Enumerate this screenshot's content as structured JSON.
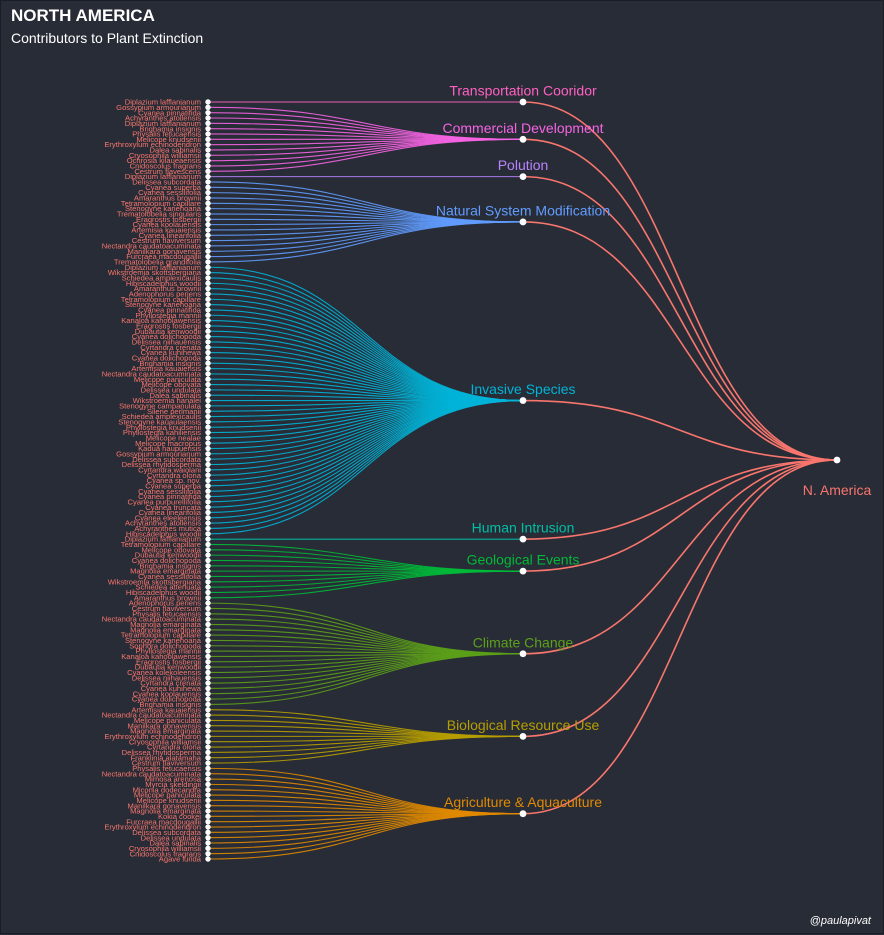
{
  "title": "NORTH AMERICA",
  "subtitle": "Contributors to Plant Extinction",
  "caption": "@paulapivat",
  "chart_data": {
    "type": "dendrogram",
    "root": {
      "name": "N. America",
      "color": "#f8766d"
    },
    "threats": [
      {
        "name": "Transportation Cooridor",
        "color": "#ff61c3"
      },
      {
        "name": "Commercial Development",
        "color": "#f564e3"
      },
      {
        "name": "Polution",
        "color": "#b983ff"
      },
      {
        "name": "Natural System Modification",
        "color": "#619cff"
      },
      {
        "name": "Invasive Species",
        "color": "#00b4d8"
      },
      {
        "name": "Human Intrusion",
        "color": "#00bfa5"
      },
      {
        "name": "Geological Events",
        "color": "#00ba38"
      },
      {
        "name": "Climate Change",
        "color": "#5ca01a"
      },
      {
        "name": "Biological Resource Use",
        "color": "#b79f00"
      },
      {
        "name": "Agriculture & Aquaculture",
        "color": "#e08a00"
      }
    ],
    "leaves": [
      [
        "Diplazium lafflanianum"
      ],
      [
        "Gossypium armourianum",
        "Cyanea pinnatifida",
        "Achyranthes atollensis",
        "Diplazium lafflanianum",
        "Brighamia insignis",
        "Physalis fetucaensis",
        "Melicope knudsenii",
        "Erythroxylum echinodendron",
        "Dalea sabinalis",
        "Cryosophila williamsii",
        "Ochrosia kilaueaensis",
        "Cnidoscolus fragrans",
        "Cestrum flavescens"
      ],
      [
        "Diplazium lafflanianum"
      ],
      [
        "Delissea subcordata",
        "Cyanea superba",
        "Cyanea sessilifolia",
        "Amaranthus brownii",
        "Tetramolopium capillare",
        "Stenogyne kanehoana",
        "Trematolobelia singularis",
        "Eragrostis fosbergii",
        "Cyanea koolauensis",
        "Artemisia kauaiensis",
        "Cyanea linearifolia",
        "Cestrum flaviversum",
        "Nectandra caudatoacuminata",
        "Manilkara gonavensis",
        "Furcraea macdougallii",
        "Trematolobelia grandifolia"
      ],
      [
        "Diplazium lafflanianum",
        "Wikstroemia skottsbergiana",
        "Schiedea amplexicaulis",
        "Hibiscadelphus woodii",
        "Amaranthus brownii",
        "Adenophorus periens",
        "Tetramolopium capillare",
        "Stenogyne kanehoana",
        "Cyanea pinnatifida",
        "Phyllostegia mannii",
        "Kanaloa kahoolawensis",
        "Eragrostis fosbergii",
        "Dubautia kenwoodii",
        "Cyanea dolichopoda",
        "Delissea niihauensis",
        "Cyrtandra crenata",
        "Cyanea kuhihewa",
        "Cyanea dolichopoda",
        "Brighamia insignis",
        "Artemisia kauaiensis",
        "Nectandra caudatoacuminata",
        "Melicope paniculata",
        "Melicope obovata",
        "Delissea undulata",
        "Dalea sabinalis",
        "Wikstroemia hanalei",
        "Stenogyne campanulata",
        "Silene perlmanii",
        "Schiedea amplexicaulis",
        "Stenogyne kauaulaensis",
        "Phyllostegia knudsenii",
        "Phyllostegia kahiliensis",
        "Melicope nealae",
        "Melicope macropus",
        "Kadua haupuensis",
        "Gossypium armourianum",
        "Delissea subcordata",
        "Delissea rhytidosperma",
        "Cyrtandra waiolani",
        "Cyrtandra olona",
        "Cyanea sp. nov.",
        "Cyanea superba",
        "Cyanea sessilifolia",
        "Cyanea pinnatifida",
        "Cyanea purpurellifolia",
        "Cyanea truncata",
        "Cyanea linearifolia",
        "Cyanea eleeleensis",
        "Achyranthes atollensis",
        "Achyranthes mutica",
        "Hibiscadelphus woodii"
      ],
      [
        "Diplazium lafflanianum"
      ],
      [
        "Tetramolopium capillare",
        "Melicope obovata",
        "Dubautia kenwoodii",
        "Cyanea dolichopoda",
        "Brighamia insignis",
        "Magnolia emarginata",
        "Cyanea sessilifolia",
        "Wikstroemia skottsbergiana",
        "Schiedea attenuata",
        "Hibiscadelphus woodii",
        "Amaranthus brownii"
      ],
      [
        "Adenophorus periens",
        "Cestrum flaviversum",
        "Physalis fetucaensis",
        "Nectandra caudatoacuminata",
        "Magnolia emarginata",
        "Magnolia emarginata",
        "Tetramolopium capillare",
        "Stenogyne kanehoana",
        "Sophora dolichopoda",
        "Phyllostegia mannii",
        "Kanaloa kahoolawensis",
        "Eragrostis fosbergii",
        "Dubautia kenwoodii",
        "Cyanea kolekoleensis",
        "Delissea niihauensis",
        "Cyrtandra crenata",
        "Cyanea kuhihewa",
        "Cyanea koolauensis",
        "Cyanea dolichopoda",
        "Brighamia insignis"
      ],
      [
        "Artemisia kauaiensis",
        "Nectandra caudatoacuminata",
        "Melicope paniculata",
        "Manilkara gonavensis",
        "Magnolia emarginata",
        "Erythroxylum echinodendron",
        "Cryosophila williamsii",
        "Cyrtandra olona",
        "Delissea rhytidosperma",
        "Franklinia alatamaha",
        "Cestrum flaviversum"
      ],
      [
        "Physalis fetucaensis",
        "Nectandra caudatoacuminata",
        "Mimosa arenosa",
        "Myrcia skeldingii",
        "Miconia dodecandra",
        "Melicope paniculata",
        "Melicope knudsenii",
        "Manilkara gonavensis",
        "Magnolia emarginata",
        "Kokia cookei",
        "Furcraea macdougallii",
        "Erythroxylum echinodendron",
        "Delissea subcordata",
        "Delissea undulata",
        "Dalea sabinalis",
        "Cryosophila williamsii",
        "Cnidoscolus fragrans",
        "Agave lurida"
      ]
    ]
  }
}
